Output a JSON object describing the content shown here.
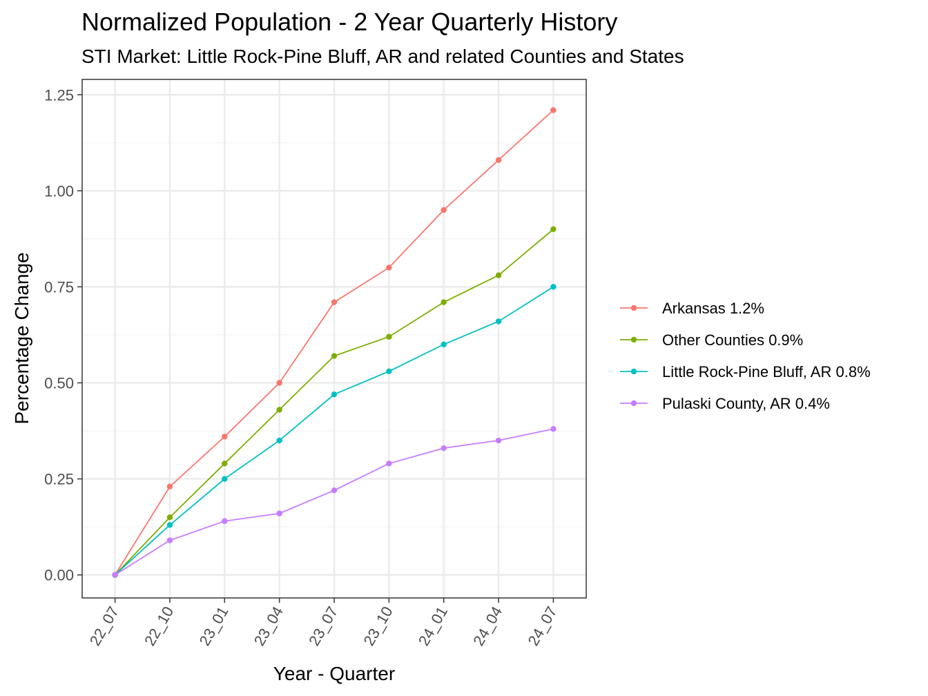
{
  "chart_data": {
    "type": "line",
    "title": "Normalized Population - 2 Year Quarterly History",
    "subtitle": "STI Market: Little Rock-Pine Bluff, AR and related Counties and States",
    "xlabel": "Year - Quarter",
    "ylabel": "Percentage Change",
    "categories": [
      "22_07",
      "22_10",
      "23_01",
      "23_04",
      "23_07",
      "23_10",
      "24_01",
      "24_04",
      "24_07"
    ],
    "ylim": [
      -0.06,
      1.29
    ],
    "yticks": [
      0.0,
      0.25,
      0.5,
      0.75,
      1.0,
      1.25
    ],
    "ytick_labels": [
      "0.00",
      "0.25",
      "0.50",
      "0.75",
      "1.00",
      "1.25"
    ],
    "grid": true,
    "legend_position": "right",
    "series": [
      {
        "name": "Arkansas 1.2%",
        "color": "#F8766D",
        "values": [
          0.0,
          0.23,
          0.36,
          0.5,
          0.71,
          0.8,
          0.95,
          1.08,
          1.21
        ]
      },
      {
        "name": "Other Counties 0.9%",
        "color": "#7CAE00",
        "values": [
          0.0,
          0.15,
          0.29,
          0.43,
          0.57,
          0.62,
          0.71,
          0.78,
          0.9
        ]
      },
      {
        "name": "Little Rock-Pine Bluff, AR 0.8%",
        "color": "#00BFC4",
        "values": [
          0.0,
          0.13,
          0.25,
          0.35,
          0.47,
          0.53,
          0.6,
          0.66,
          0.75
        ]
      },
      {
        "name": "Pulaski County, AR 0.4%",
        "color": "#C77CFF",
        "values": [
          0.0,
          0.09,
          0.14,
          0.16,
          0.22,
          0.29,
          0.33,
          0.35,
          0.38
        ]
      }
    ]
  }
}
